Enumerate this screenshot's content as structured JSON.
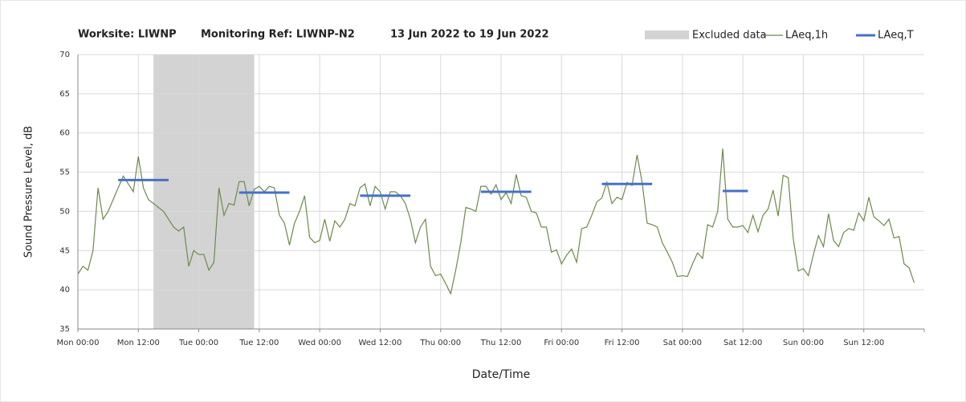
{
  "chart_data": {
    "type": "line",
    "title": [
      "Worksite: LIWNP",
      "Monitoring Ref: LIWNP-N2",
      "13 Jun 2022 to 19 Jun 2022"
    ],
    "x_label": "Date/Time",
    "y_label": "Sound Pressure Level, dB",
    "xlim": [
      0,
      168
    ],
    "xticks": [
      {
        "value": 0,
        "label": "Mon 00:00"
      },
      {
        "value": 12,
        "label": "Mon 12:00"
      },
      {
        "value": 24,
        "label": "Tue 00:00"
      },
      {
        "value": 36,
        "label": "Tue 12:00"
      },
      {
        "value": 48,
        "label": "Wed 00:00"
      },
      {
        "value": 60,
        "label": "Wed 12:00"
      },
      {
        "value": 72,
        "label": "Thu 00:00"
      },
      {
        "value": 84,
        "label": "Thu 12:00"
      },
      {
        "value": 96,
        "label": "Fri 00:00"
      },
      {
        "value": 108,
        "label": "Fri 12:00"
      },
      {
        "value": 120,
        "label": "Sat 00:00"
      },
      {
        "value": 132,
        "label": "Sat 12:00"
      },
      {
        "value": 144,
        "label": "Sun 00:00"
      },
      {
        "value": 156,
        "label": "Sun 12:00"
      }
    ],
    "ylim": [
      35,
      70
    ],
    "yticks": [
      35,
      40,
      45,
      50,
      55,
      60,
      65,
      70
    ],
    "grid": true,
    "excluded": {
      "name": "Excluded data",
      "color": "#d3d3d3",
      "start": 15,
      "end": 35
    },
    "series": [
      {
        "name": "LAeq,1h",
        "color": "#6b8a4c",
        "x": [
          0,
          1,
          2,
          3,
          4,
          5,
          6,
          7,
          8,
          9,
          10,
          11,
          12,
          13,
          14,
          15,
          16,
          17,
          18,
          19,
          20,
          21,
          22,
          23,
          24,
          25,
          26,
          27,
          28,
          29,
          30,
          31,
          32,
          33,
          34,
          35,
          36,
          37,
          38,
          39,
          40,
          41,
          42,
          43,
          44,
          45,
          46,
          47,
          48,
          49,
          50,
          51,
          52,
          53,
          54,
          55,
          56,
          57,
          58,
          59,
          60,
          61,
          62,
          63,
          64,
          65,
          66,
          67,
          68,
          69,
          70,
          71,
          72,
          73,
          74,
          75,
          76,
          77,
          78,
          79,
          80,
          81,
          82,
          83,
          84,
          85,
          86,
          87,
          88,
          89,
          90,
          91,
          92,
          93,
          94,
          95,
          96,
          97,
          98,
          99,
          100,
          101,
          102,
          103,
          104,
          105,
          106,
          107,
          108,
          109,
          110,
          111,
          112,
          113,
          114,
          115,
          116,
          117,
          118,
          119,
          120,
          121,
          122,
          123,
          124,
          125,
          126,
          127,
          128,
          129,
          130,
          131,
          132,
          133,
          134,
          135,
          136,
          137,
          138,
          139,
          140,
          141,
          142,
          143,
          144,
          145,
          146,
          147,
          148,
          149,
          150,
          151,
          152,
          153,
          154,
          155,
          156,
          157,
          158,
          159,
          160,
          161,
          162,
          163,
          164,
          165,
          166
        ],
        "values": [
          42,
          43,
          42.5,
          45,
          53,
          49,
          50,
          51.5,
          53,
          54.5,
          53.5,
          52.5,
          57,
          53,
          51.5,
          51,
          50.5,
          50,
          49,
          48,
          47.5,
          48,
          43,
          45,
          44.5,
          44.5,
          42.5,
          43.5,
          53,
          49.5,
          51,
          50.8,
          53.8,
          53.8,
          50.7,
          52.8,
          53.2,
          52.5,
          53.2,
          53,
          49.5,
          48.5,
          45.7,
          48.5,
          50,
          52,
          46.7,
          46,
          46.3,
          49,
          46.2,
          48.8,
          48,
          49,
          51,
          50.7,
          53,
          53.5,
          50.7,
          53.2,
          52.5,
          50.3,
          52.5,
          52.5,
          52,
          51,
          49,
          46,
          48,
          49,
          43,
          41.8,
          42,
          40.8,
          39.5,
          42.5,
          46,
          50.5,
          50.3,
          50,
          53.2,
          53.2,
          52.2,
          53.4,
          51.5,
          52.4,
          51,
          54.7,
          52,
          51.8,
          50,
          49.8,
          48,
          48,
          44.8,
          45.1,
          43.3,
          44.4,
          45.2,
          43.5,
          47.8,
          48,
          49.5,
          51.2,
          51.7,
          53.7,
          51,
          51.8,
          51.5,
          53.7,
          53.3,
          57.2,
          53.7,
          48.5,
          48.3,
          48,
          46,
          44.8,
          43.5,
          41.7,
          41.8,
          41.7,
          43.3,
          44.7,
          44,
          48.3,
          48,
          50,
          58,
          49,
          48,
          48,
          48.2,
          47.3,
          49.5,
          47.4,
          49.5,
          50.3,
          52.7,
          49.4,
          54.6,
          54.3,
          46.5,
          42.4,
          42.7,
          41.8,
          44.5,
          46.9,
          45.5,
          49.7,
          46.3,
          45.5,
          47.3,
          47.8,
          47.6,
          49.8,
          48.8,
          51.8,
          49.3,
          48.8,
          48.2,
          49,
          46.6,
          46.8,
          43.3,
          42.8,
          40.9
        ]
      },
      {
        "name": "LAeq,T",
        "color": "#4472c4",
        "start": [
          8,
          32,
          56,
          80,
          104,
          128
        ],
        "end": [
          18,
          42,
          66,
          90,
          114,
          133
        ],
        "values": [
          54,
          52.4,
          52,
          52.5,
          53.5,
          52.6
        ]
      }
    ]
  }
}
